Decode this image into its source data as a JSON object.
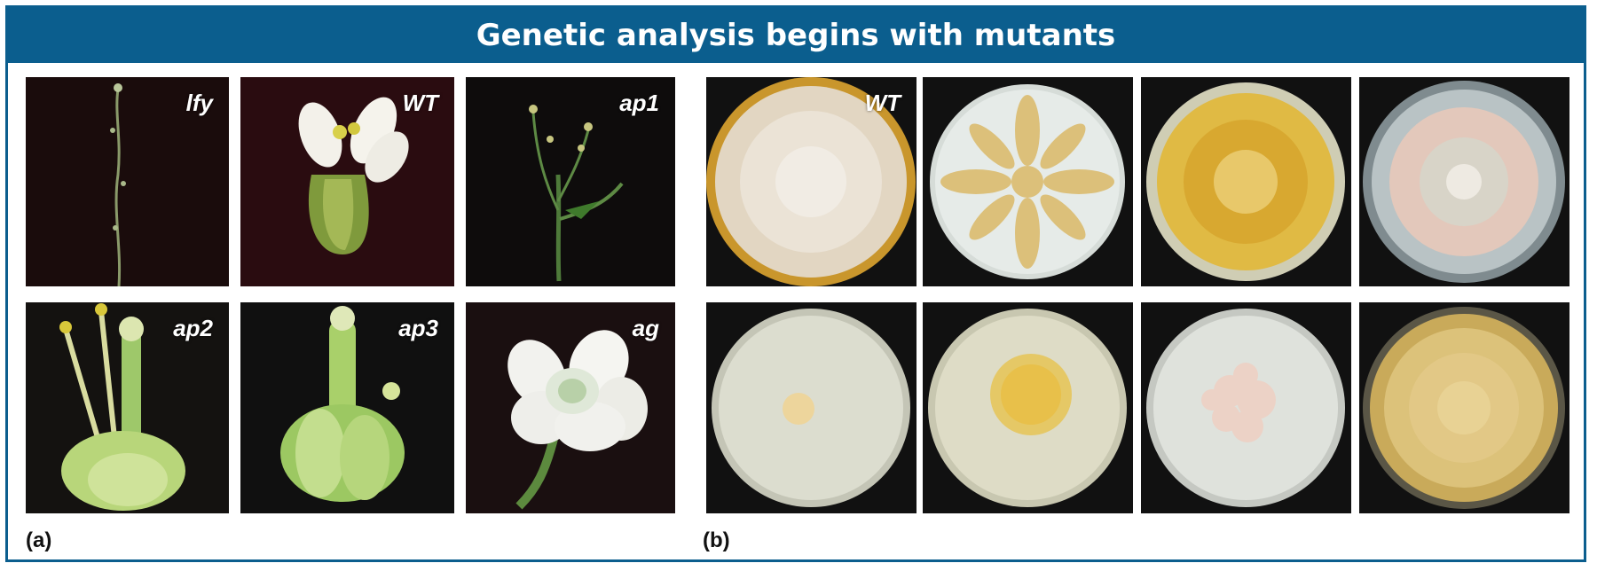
{
  "title": "Genetic analysis begins with mutants",
  "panel_a": {
    "label": "(a)",
    "tiles": [
      {
        "tag": "lfy"
      },
      {
        "tag": "WT"
      },
      {
        "tag": "ap1"
      },
      {
        "tag": "ap2"
      },
      {
        "tag": "ap3"
      },
      {
        "tag": "ag"
      }
    ]
  },
  "panel_b": {
    "label": "(b)",
    "tiles": [
      {
        "tag": "WT"
      }
    ]
  },
  "colors": {
    "banner": "#0b5e8e",
    "flower_bg": "#1a0c0c",
    "plate_bg": "#111111"
  }
}
